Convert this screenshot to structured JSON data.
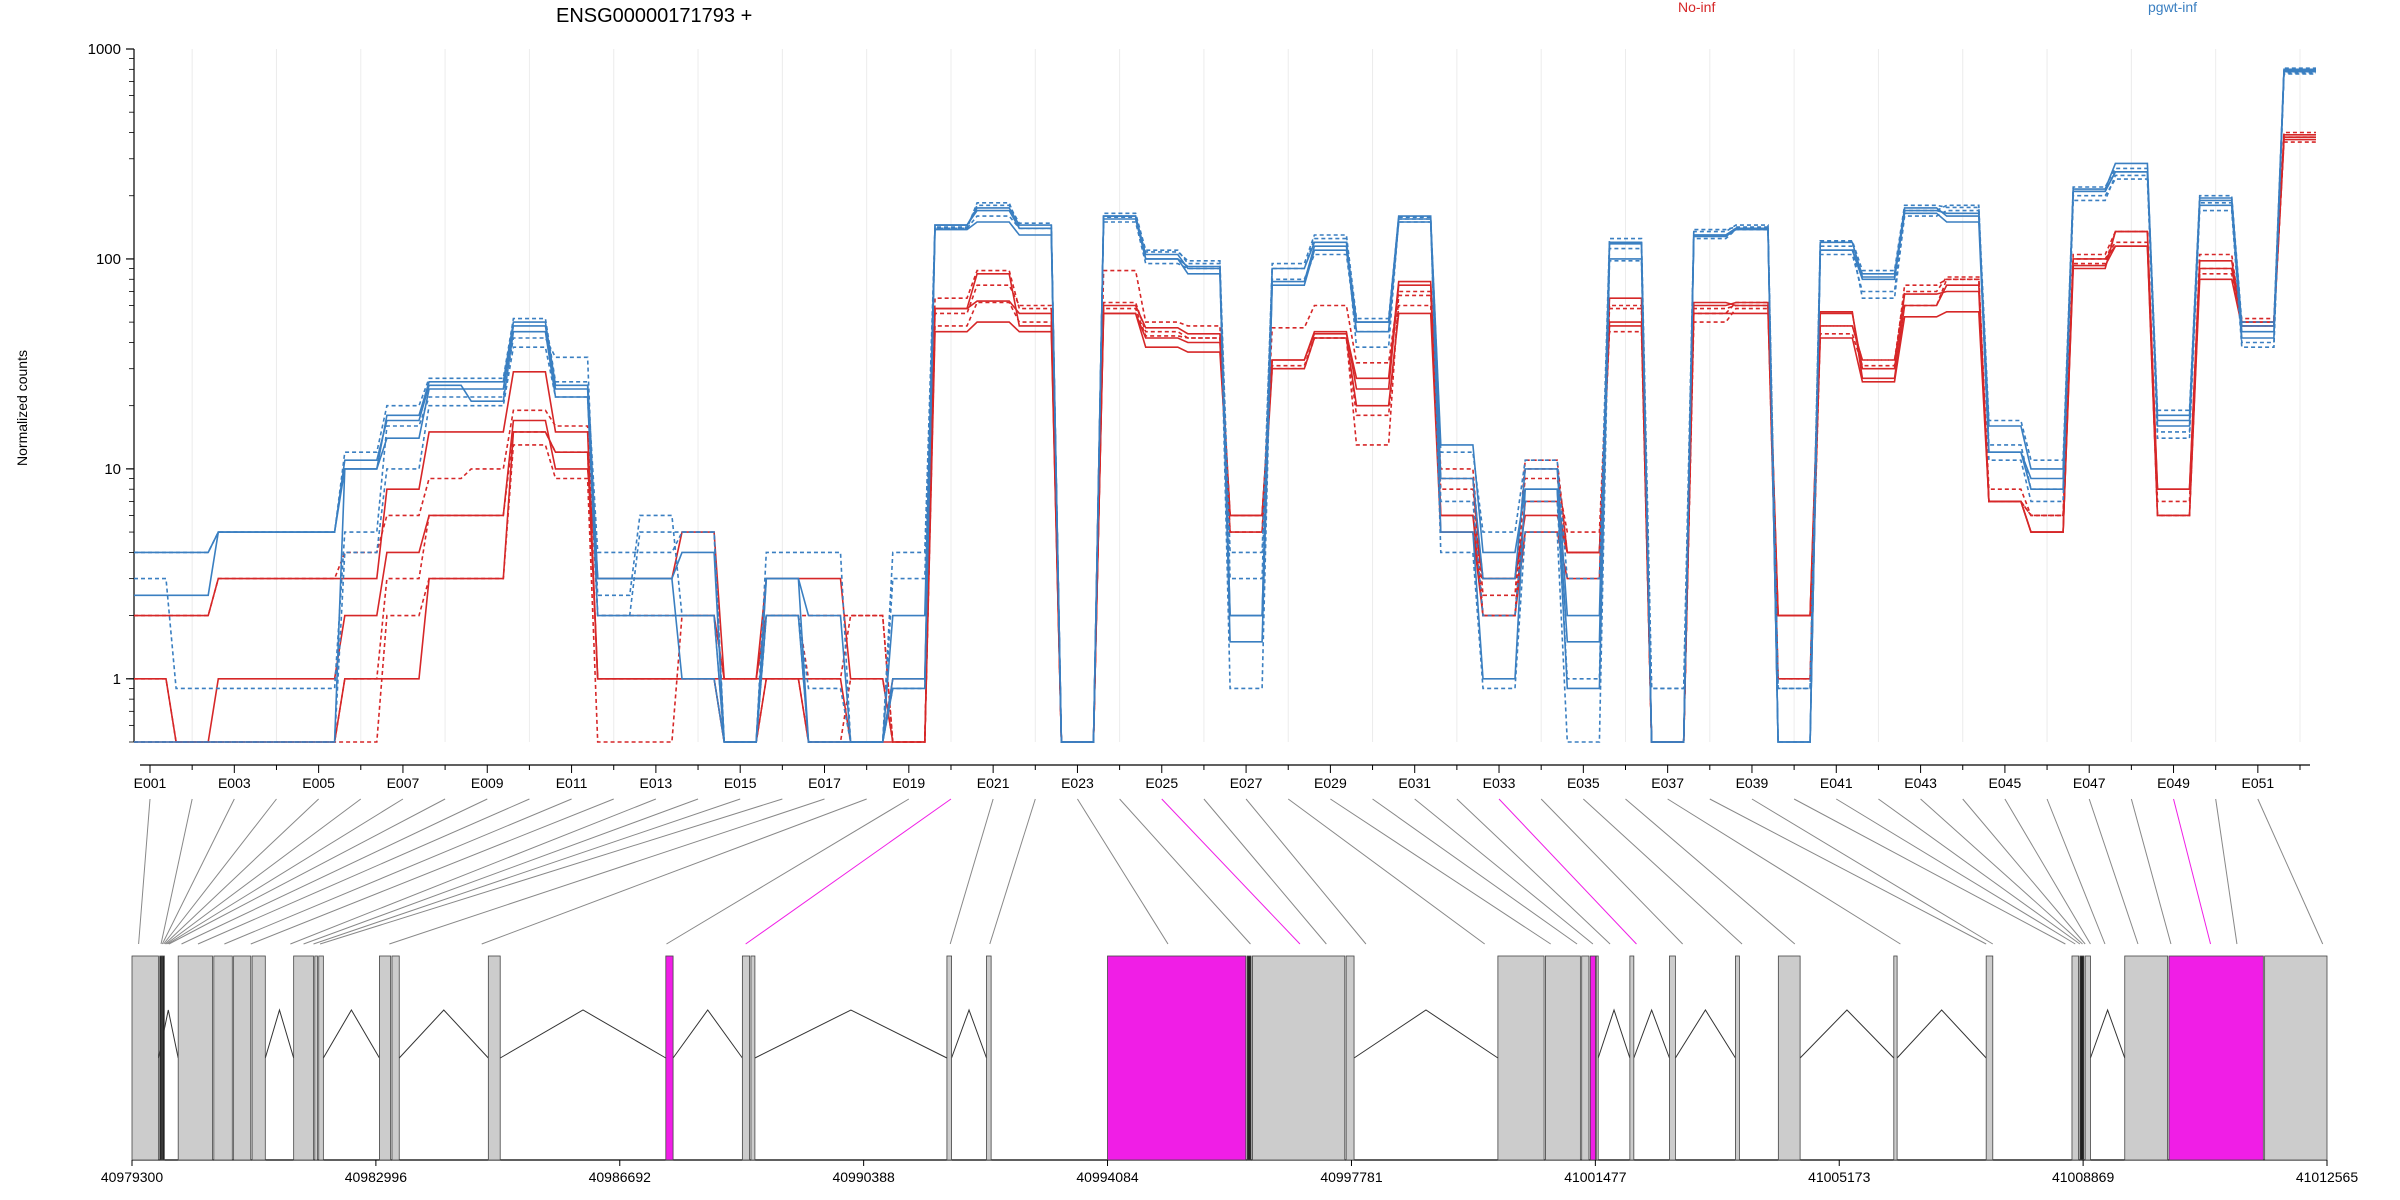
{
  "chart_data": {
    "type": "line",
    "title": "ENSG00000171793 +",
    "ylabel": "Normalized counts",
    "yscale": "log",
    "ylim": [
      0.5,
      1000
    ],
    "yticks": [
      1,
      10,
      100,
      1000
    ],
    "exon_labels_shown": [
      "E001",
      "E003",
      "E005",
      "E007",
      "E009",
      "E011",
      "E013",
      "E015",
      "E017",
      "E019",
      "E021",
      "E023",
      "E025",
      "E027",
      "E029",
      "E031",
      "E033",
      "E035",
      "E037",
      "E039",
      "E041",
      "E043",
      "E045",
      "E047",
      "E049",
      "E051"
    ],
    "gene_axis_ticks": [
      40979300,
      40982996,
      40986692,
      40990388,
      40994084,
      40997781,
      41001477,
      41005173,
      41008869,
      41012565
    ],
    "colors": {
      "no_inf": "#d62728",
      "pgwt_inf": "#3a7fc1",
      "highlight": "#f01ee6",
      "exon_fill": "#cccccc"
    },
    "series": [
      {
        "name": "No-inf",
        "color": "#d62728",
        "dash": false,
        "values": [
          1.0,
          0.5,
          0.5,
          0.5,
          0.5,
          1.0,
          1.0,
          3.0,
          3.0,
          15,
          12,
          1.0,
          1.0,
          1.0,
          1.0,
          1.0,
          0.5,
          0.5,
          1.0,
          58,
          63,
          55,
          0.5,
          60,
          47,
          44,
          6.0,
          33,
          44,
          27,
          78,
          6.0,
          2.0,
          7.0,
          4.0,
          48,
          0.5,
          62,
          60,
          2.0,
          56,
          27,
          60,
          75,
          7.0,
          5.0,
          100,
          115,
          8.0,
          90,
          50,
          380
        ]
      },
      {
        "name": "No-inf",
        "color": "#d62728",
        "dash": true,
        "values": [
          2.0,
          2.0,
          3.0,
          3.0,
          3.0,
          4.0,
          6.0,
          9.0,
          10.0,
          19,
          16,
          2.0,
          2.0,
          2.0,
          1.0,
          2.0,
          2.0,
          2.0,
          0.5,
          65,
          88,
          58,
          0.5,
          88,
          50,
          48,
          5.0,
          47,
          60,
          32,
          70,
          8.0,
          3.0,
          9.0,
          5.0,
          58,
          0.5,
          55,
          62,
          1.0,
          44,
          31,
          75,
          80,
          8.0,
          6.0,
          95,
          135,
          7.0,
          105,
          48,
          360
        ]
      },
      {
        "name": "No-inf",
        "color": "#d62728",
        "dash": false,
        "values": [
          0.5,
          0.5,
          1.0,
          1.0,
          1.0,
          2.0,
          4.0,
          6.0,
          6.0,
          17,
          10,
          3.0,
          3.0,
          5.0,
          1.0,
          3.0,
          3.0,
          1.0,
          0.5,
          45,
          50,
          45,
          0.5,
          55,
          42,
          40,
          5.0,
          30,
          42,
          20,
          55,
          5.0,
          2.0,
          5.0,
          3.0,
          65,
          0.5,
          60,
          62,
          2.0,
          42,
          26,
          53,
          56,
          7.0,
          5.0,
          93,
          115,
          6.0,
          80,
          48,
          390
        ]
      },
      {
        "name": "No-inf",
        "color": "#d62728",
        "dash": true,
        "values": [
          1.0,
          0.5,
          0.5,
          0.5,
          0.5,
          0.5,
          2.0,
          3.0,
          3.0,
          13,
          9.0,
          0.5,
          0.5,
          2.0,
          1.0,
          2.0,
          1.0,
          2.0,
          0.5,
          55,
          75,
          60,
          0.5,
          62,
          45,
          42,
          6.0,
          30,
          42,
          18,
          60,
          10.0,
          2.5,
          11.0,
          4.0,
          60,
          0.5,
          50,
          58,
          1.0,
          48,
          33,
          70,
          82,
          7.0,
          6.0,
          105,
          135,
          6.0,
          90,
          52,
          400
        ]
      },
      {
        "name": "No-inf",
        "color": "#d62728",
        "dash": false,
        "values": [
          2.0,
          2.0,
          3.0,
          3.0,
          3.0,
          3.0,
          8.0,
          15,
          15,
          29,
          15,
          1.0,
          1.0,
          1.0,
          0.5,
          1.0,
          1.0,
          0.5,
          0.5,
          58,
          85,
          48,
          0.5,
          55,
          38,
          36,
          6.0,
          33,
          45,
          24,
          75,
          6.0,
          3.0,
          6.0,
          4.0,
          50,
          0.5,
          55,
          55,
          2.0,
          55,
          30,
          68,
          70,
          7.0,
          5.0,
          90,
          135,
          8.0,
          98,
          50,
          370
        ]
      },
      {
        "name": "No-inf",
        "color": "#d62728",
        "dash": true,
        "values": [
          0.5,
          0.5,
          0.5,
          0.5,
          0.5,
          1.0,
          3.0,
          6.0,
          6.0,
          15,
          12,
          1.0,
          1.0,
          1.0,
          0.5,
          1.0,
          0.5,
          1.0,
          0.5,
          48,
          62,
          50,
          0.5,
          58,
          43,
          42,
          6.0,
          31,
          42,
          13,
          67,
          9.0,
          2.0,
          10.0,
          4.0,
          45,
          0.5,
          58,
          60,
          1.0,
          48,
          33,
          60,
          80,
          7.0,
          6.0,
          100,
          120,
          6.0,
          85,
          48,
          380
        ]
      },
      {
        "name": "pgwt-inf",
        "color": "#3a7fc1",
        "dash": false,
        "values": [
          4.0,
          4.0,
          5.0,
          5.0,
          5.0,
          10.0,
          14,
          24,
          24,
          48,
          24,
          3.0,
          3.0,
          4.0,
          0.5,
          3.0,
          0.5,
          0.5,
          2.0,
          145,
          175,
          145,
          0.5,
          160,
          100,
          92,
          1.5,
          75,
          110,
          50,
          155,
          13,
          4.0,
          8.0,
          1.5,
          120,
          0.5,
          130,
          140,
          0.5,
          120,
          82,
          175,
          160,
          16,
          10,
          210,
          260,
          17,
          190,
          45,
          790
        ]
      },
      {
        "name": "pgwt-inf",
        "color": "#3a7fc1",
        "dash": true,
        "values": [
          3.0,
          0.9,
          0.9,
          0.9,
          0.9,
          5.0,
          16,
          22,
          22,
          42,
          34,
          2.0,
          5.0,
          5.0,
          0.5,
          2.0,
          0.9,
          0.5,
          4.0,
          140,
          160,
          140,
          0.5,
          150,
          95,
          90,
          0.9,
          80,
          105,
          45,
          150,
          7.0,
          2.0,
          7.0,
          1.0,
          112,
          0.9,
          125,
          138,
          0.9,
          115,
          65,
          160,
          170,
          13,
          8.0,
          200,
          240,
          15,
          185,
          40,
          760
        ]
      },
      {
        "name": "pgwt-inf",
        "color": "#3a7fc1",
        "dash": false,
        "values": [
          2.5,
          2.5,
          5.0,
          5.0,
          5.0,
          11,
          17,
          25,
          21,
          45,
          22,
          2.0,
          2.0,
          2.0,
          0.5,
          2.0,
          0.5,
          0.5,
          1.0,
          138,
          150,
          130,
          0.5,
          155,
          100,
          85,
          2.0,
          78,
          115,
          45,
          150,
          9.0,
          3.0,
          10.0,
          2.0,
          118,
          0.5,
          128,
          138,
          0.5,
          110,
          80,
          165,
          150,
          12,
          9.0,
          215,
          285,
          16,
          180,
          42,
          780
        ]
      },
      {
        "name": "pgwt-inf",
        "color": "#3a7fc1",
        "dash": true,
        "values": [
          0.5,
          0.5,
          0.5,
          0.5,
          0.5,
          4.0,
          10,
          20,
          20,
          38,
          22,
          2.5,
          6.0,
          2.0,
          0.5,
          2.0,
          0.5,
          0.5,
          0.9,
          140,
          185,
          140,
          0.5,
          165,
          110,
          95,
          4.0,
          90,
          125,
          38,
          155,
          4.0,
          0.9,
          5.0,
          0.5,
          98,
          0.5,
          135,
          145,
          0.5,
          105,
          70,
          170,
          180,
          11,
          7.0,
          190,
          250,
          14,
          170,
          38,
          770
        ]
      },
      {
        "name": "pgwt-inf",
        "color": "#3a7fc1",
        "dash": false,
        "values": [
          0.5,
          0.5,
          0.5,
          0.5,
          0.5,
          10,
          18,
          26,
          26,
          50,
          25,
          3.0,
          3.0,
          1.0,
          0.5,
          3.0,
          2.0,
          0.5,
          0.9,
          145,
          170,
          140,
          0.5,
          160,
          105,
          90,
          2.0,
          90,
          120,
          50,
          160,
          5.0,
          1.0,
          8.0,
          0.9,
          100,
          0.5,
          130,
          140,
          0.5,
          110,
          85,
          170,
          165,
          12,
          8.0,
          210,
          260,
          18,
          195,
          48,
          800
        ]
      },
      {
        "name": "pgwt-inf",
        "color": "#3a7fc1",
        "dash": true,
        "values": [
          4.0,
          4.0,
          5.0,
          5.0,
          5.0,
          12,
          20,
          27,
          27,
          52,
          26,
          4.0,
          4.0,
          5.0,
          0.5,
          4.0,
          4.0,
          0.5,
          3.0,
          142,
          180,
          148,
          0.5,
          158,
          108,
          98,
          3.0,
          95,
          130,
          52,
          158,
          12,
          5.0,
          11,
          3.0,
          125,
          0.9,
          138,
          142,
          0.9,
          122,
          88,
          180,
          176,
          17,
          11,
          220,
          270,
          19,
          200,
          50,
          810
        ]
      }
    ],
    "legend": [
      "No-inf",
      "pgwt-inf"
    ],
    "legend_placement": "top-right"
  }
}
